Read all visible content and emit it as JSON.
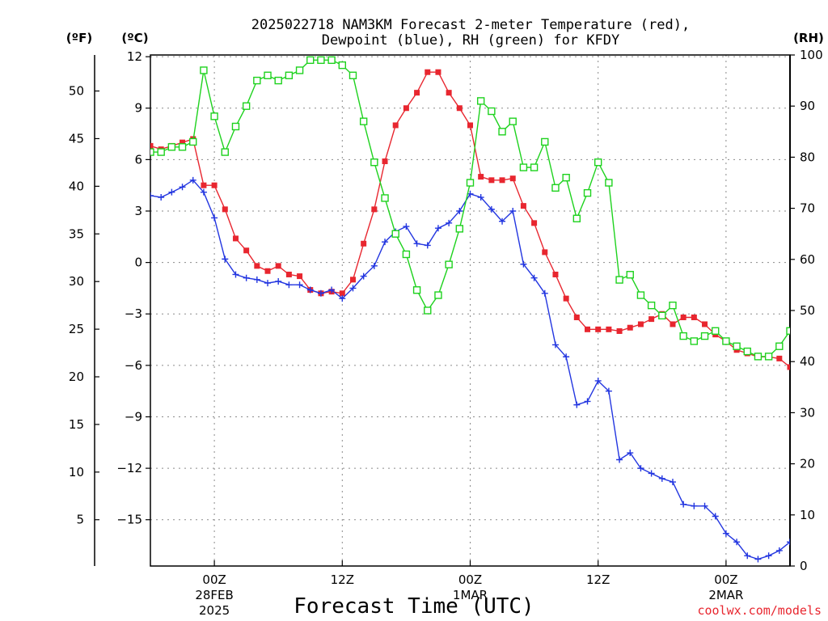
{
  "chart_data": {
    "type": "line",
    "title": "2025022718 NAM3KM Forecast 2-meter Temperature (red),",
    "subtitle": "Dewpoint (blue), RH (green) for KFDY",
    "xlabel": "Forecast Time (UTC)",
    "credit": "coolwx.com/models",
    "units": {
      "fahrenheit": "(ºF)",
      "celsius": "(ºC)",
      "rh": "(RH)"
    },
    "x_range_hours": [
      0,
      60
    ],
    "x_ticks": [
      {
        "hour": 6,
        "label": "00Z",
        "sub1": "28FEB",
        "sub2": "2025"
      },
      {
        "hour": 18,
        "label": "12Z",
        "sub1": "",
        "sub2": ""
      },
      {
        "hour": 30,
        "label": "00Z",
        "sub1": "1MAR",
        "sub2": ""
      },
      {
        "hour": 42,
        "label": "12Z",
        "sub1": "",
        "sub2": ""
      },
      {
        "hour": 54,
        "label": "00Z",
        "sub1": "2MAR",
        "sub2": ""
      }
    ],
    "grid": true,
    "y_celsius": {
      "ylim": [
        -17.7,
        12.1
      ],
      "ticks": [
        12,
        9,
        6,
        3,
        0,
        -3,
        -6,
        -9,
        -12,
        -15
      ]
    },
    "y_fahrenheit": {
      "ticks": [
        50,
        45,
        40,
        35,
        30,
        25,
        20,
        15,
        10,
        5
      ]
    },
    "y_rh": {
      "ylim": [
        0,
        100
      ],
      "ticks": [
        100,
        90,
        80,
        70,
        60,
        50,
        40,
        30,
        20,
        10,
        0
      ]
    },
    "series": [
      {
        "name": "Temperature",
        "color": "#e8262f",
        "marker": "filled-square",
        "axis": "celsius",
        "x": [
          0,
          1,
          2,
          3,
          4,
          5,
          6,
          7,
          8,
          9,
          10,
          11,
          12,
          13,
          14,
          15,
          16,
          17,
          18,
          19,
          20,
          21,
          22,
          23,
          24,
          25,
          26,
          27,
          28,
          29,
          30,
          31,
          32,
          33,
          34,
          35,
          36,
          37,
          38,
          39,
          40,
          41,
          42,
          43,
          44,
          45,
          46,
          47,
          48,
          49,
          50,
          51,
          52,
          53,
          54,
          55,
          56,
          57,
          58,
          59,
          60
        ],
        "values": [
          6.8,
          6.6,
          6.8,
          7.0,
          7.2,
          4.5,
          4.5,
          3.1,
          1.4,
          0.7,
          -0.2,
          -0.5,
          -0.2,
          -0.7,
          -0.8,
          -1.6,
          -1.8,
          -1.7,
          -1.8,
          -1.0,
          1.1,
          3.1,
          5.9,
          8.0,
          9.0,
          9.9,
          11.1,
          11.1,
          9.9,
          9.0,
          8.0,
          5.0,
          4.8,
          4.8,
          4.9,
          3.3,
          2.3,
          0.6,
          -0.7,
          -2.1,
          -3.2,
          -3.9,
          -3.9,
          -3.9,
          -4.0,
          -3.8,
          -3.6,
          -3.3,
          -3.0,
          -3.6,
          -3.2,
          -3.2,
          -3.6,
          -4.2,
          -4.6,
          -5.1,
          -5.3,
          -5.5,
          -5.5,
          -5.6,
          -6.1
        ]
      },
      {
        "name": "Dewpoint",
        "color": "#2336e0",
        "marker": "plus",
        "axis": "celsius",
        "x": [
          0,
          1,
          2,
          3,
          4,
          5,
          6,
          7,
          8,
          9,
          10,
          11,
          12,
          13,
          14,
          15,
          16,
          17,
          18,
          19,
          20,
          21,
          22,
          23,
          24,
          25,
          26,
          27,
          28,
          29,
          30,
          31,
          32,
          33,
          34,
          35,
          36,
          37,
          38,
          39,
          40,
          41,
          42,
          43,
          44,
          45,
          46,
          47,
          48,
          49,
          50,
          51,
          52,
          53,
          54,
          55,
          56,
          57,
          58,
          59,
          60
        ],
        "values": [
          3.9,
          3.8,
          4.1,
          4.4,
          4.8,
          4.1,
          2.6,
          0.2,
          -0.7,
          -0.9,
          -1.0,
          -1.2,
          -1.1,
          -1.3,
          -1.3,
          -1.6,
          -1.8,
          -1.6,
          -2.1,
          -1.5,
          -0.8,
          -0.2,
          1.2,
          1.8,
          2.1,
          1.1,
          1.0,
          2.0,
          2.3,
          3.0,
          4.0,
          3.8,
          3.1,
          2.4,
          3.0,
          -0.1,
          -0.9,
          -1.8,
          -4.8,
          -5.5,
          -8.3,
          -8.1,
          -6.9,
          -7.5,
          -11.5,
          -11.1,
          -12.0,
          -12.3,
          -12.6,
          -12.8,
          -14.1,
          -14.2,
          -14.2,
          -14.8,
          -15.8,
          -16.3,
          -17.1,
          -17.3,
          -17.1,
          -16.8,
          -16.3
        ]
      },
      {
        "name": "RH",
        "color": "#1ed21e",
        "marker": "open-square",
        "axis": "rh",
        "x": [
          0,
          1,
          2,
          3,
          4,
          5,
          6,
          7,
          8,
          9,
          10,
          11,
          12,
          13,
          14,
          15,
          16,
          17,
          18,
          19,
          20,
          21,
          22,
          23,
          24,
          25,
          26,
          27,
          28,
          29,
          30,
          31,
          32,
          33,
          34,
          35,
          36,
          37,
          38,
          39,
          40,
          41,
          42,
          43,
          44,
          45,
          46,
          47,
          48,
          49,
          50,
          51,
          52,
          53,
          54,
          55,
          56,
          57,
          58,
          59,
          60
        ],
        "values": [
          81,
          81,
          82,
          82,
          83,
          97,
          88,
          81,
          86,
          90,
          95,
          96,
          95,
          96,
          97,
          99,
          99,
          99,
          98,
          96,
          87,
          79,
          72,
          65,
          61,
          54,
          50,
          53,
          59,
          66,
          75,
          91,
          89,
          85,
          87,
          78,
          78,
          83,
          74,
          76,
          68,
          73,
          79,
          75,
          56,
          57,
          53,
          51,
          49,
          51,
          45,
          44,
          45,
          46,
          44,
          43,
          42,
          41,
          41,
          43,
          46
        ]
      }
    ]
  }
}
